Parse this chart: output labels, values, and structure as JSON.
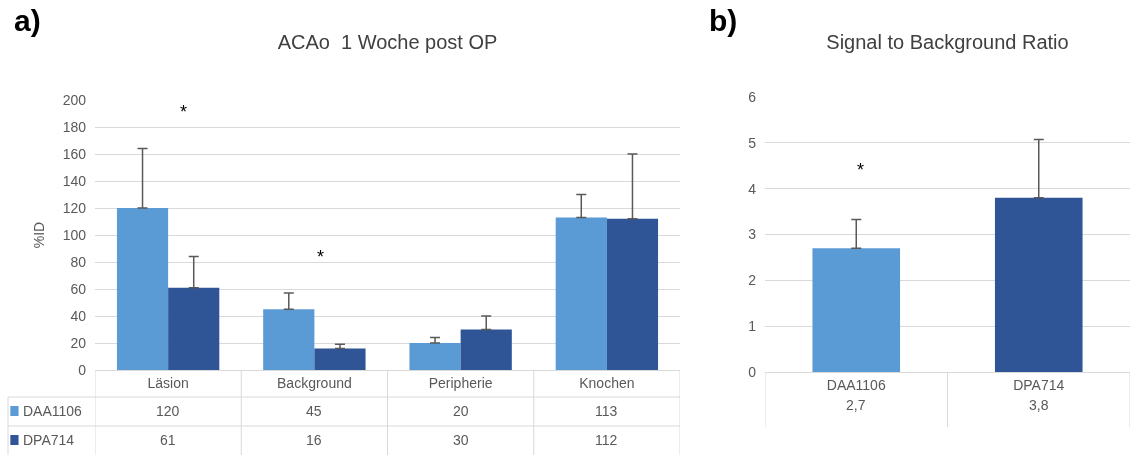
{
  "chart_data": [
    {
      "type": "bar",
      "title": "ACAo  1 Woche post OP",
      "ylabel": "%ID",
      "categories": [
        "Läsion",
        "Background",
        "Peripherie",
        "Knochen"
      ],
      "series": [
        {
          "name": "DAA1106",
          "color": "#5b9bd5",
          "values": [
            120,
            45,
            20,
            113
          ],
          "errors": [
            [
              120,
              164
            ],
            [
              45,
              57
            ],
            [
              20,
              24
            ],
            [
              113,
              130
            ]
          ]
        },
        {
          "name": "DPA714",
          "color": "#2f5597",
          "values": [
            61,
            16,
            30,
            112
          ],
          "errors": [
            [
              61,
              84
            ],
            [
              16,
              19
            ],
            [
              30,
              40
            ],
            [
              112,
              160
            ]
          ]
        }
      ],
      "ylim": [
        0,
        200
      ],
      "yticks": [
        0,
        20,
        40,
        60,
        80,
        100,
        120,
        140,
        160,
        180,
        200
      ],
      "grid": "y",
      "legend": "bottom",
      "data_labels": true,
      "annotations": [
        "a)",
        "*",
        "*"
      ]
    },
    {
      "type": "bar",
      "title": "Signal to Background Ratio",
      "categories": [
        "DAA1106",
        "DPA714"
      ],
      "colors": [
        "#5b9bd5",
        "#2f5597"
      ],
      "values": [
        2.7,
        3.8
      ],
      "errors": [
        [
          2.7,
          3.33
        ],
        [
          3.8,
          5.07
        ]
      ],
      "value_labels": [
        "2,7",
        "3,8"
      ],
      "ylim": [
        0,
        6
      ],
      "yticks": [
        0,
        1,
        2,
        3,
        4,
        5,
        6
      ],
      "grid": "y",
      "annotations": [
        "b)",
        "*"
      ]
    }
  ]
}
